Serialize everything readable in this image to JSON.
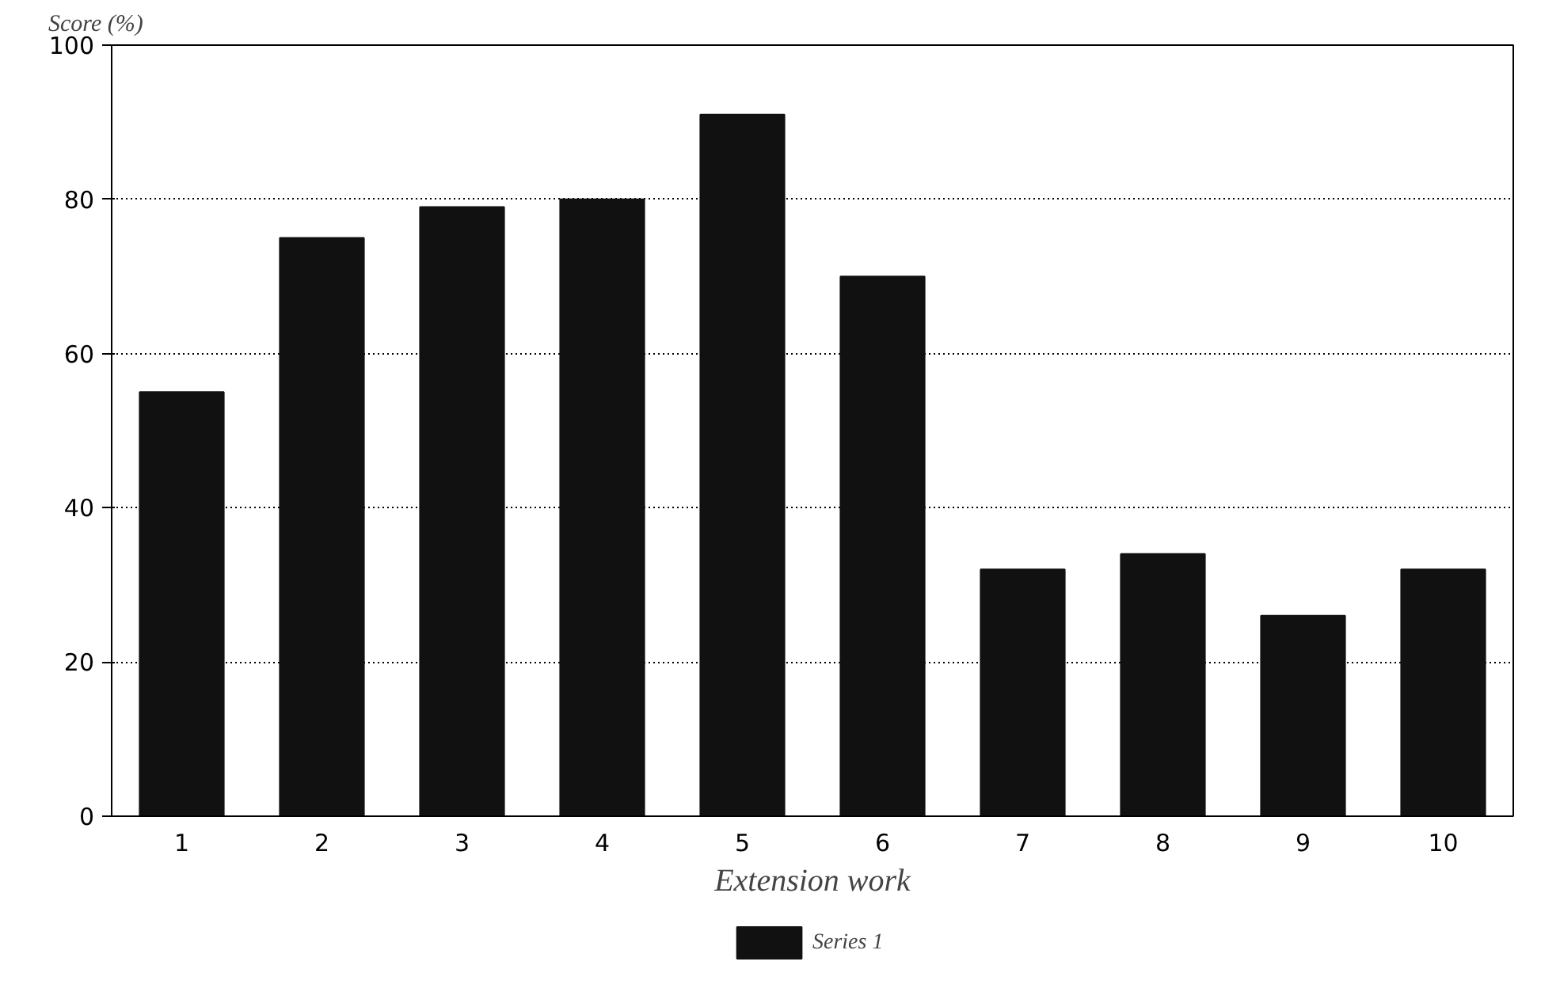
{
  "chart_data": {
    "type": "bar",
    "xlabel": "Extension work",
    "ylabel": "Score (%)",
    "categories": [
      "1",
      "2",
      "3",
      "4",
      "5",
      "6",
      "7",
      "8",
      "9",
      "10"
    ],
    "series": [
      {
        "name": "Series 1",
        "color": "#111111",
        "values": [
          55,
          75,
          79,
          80,
          91,
          70,
          32,
          34,
          26,
          32
        ]
      }
    ],
    "ylim": [
      0,
      100
    ],
    "yticks": [
      0,
      20,
      40,
      60,
      80,
      100
    ],
    "grid": "y",
    "legend": "bottom"
  }
}
